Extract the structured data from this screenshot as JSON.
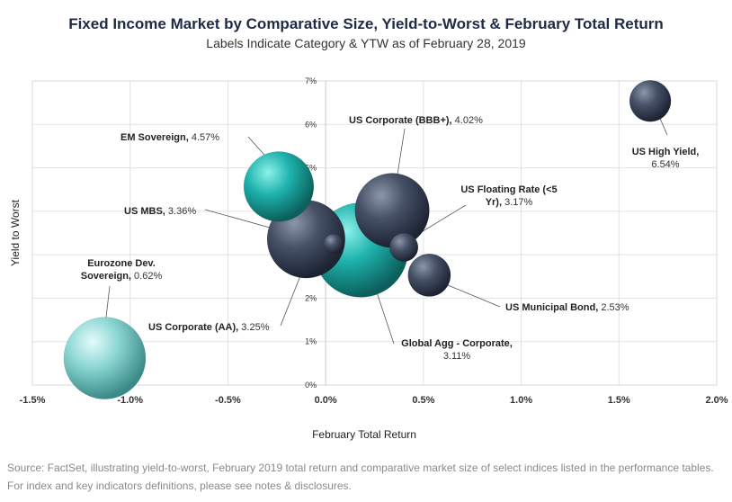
{
  "chart_data": {
    "type": "scatter",
    "title": "Fixed Income Market by Comparative Size, Yield-to-Worst & February Total Return",
    "subtitle": "Labels Indicate Category & YTW as of February 28, 2019",
    "xlabel": "February Total Return",
    "ylabel": "Yield to Worst",
    "xlim": [
      -1.5,
      2.0
    ],
    "ylim": [
      0,
      7
    ],
    "x_ticks": [
      "-1.5%",
      "-1.0%",
      "-0.5%",
      "0.0%",
      "0.5%",
      "1.0%",
      "1.5%",
      "2.0%"
    ],
    "y_ticks": [
      "0%",
      "1%",
      "2%",
      "3%",
      "4%",
      "5%",
      "6%",
      "7%"
    ],
    "grid": true,
    "points": [
      {
        "name": "US High Yield,",
        "value_label": "6.54%",
        "x": 1.66,
        "y": 6.54,
        "size": 1.2,
        "color": "#3f4a5c"
      },
      {
        "name": "US Corporate (BBB+),",
        "value_label": "4.02%",
        "x": 0.34,
        "y": 4.02,
        "size": 5.2,
        "color": "#3f4a5c"
      },
      {
        "name": "EM Sovereign,",
        "value_label": "4.57%",
        "x": -0.24,
        "y": 4.57,
        "size": 4.5,
        "color": "#1fb3ad"
      },
      {
        "name": "US Floating Rate (<5 Yr),",
        "value_label": "3.17%",
        "x": 0.4,
        "y": 3.17,
        "size": 0.4,
        "color": "#3f4a5c"
      },
      {
        "name": "US MBS,",
        "value_label": "3.36%",
        "x": -0.1,
        "y": 3.36,
        "size": 5.8,
        "color": "#3f4a5c"
      },
      {
        "name": "US Municipal Bond,",
        "value_label": "2.53%",
        "x": 0.53,
        "y": 2.53,
        "size": 1.3,
        "color": "#3f4a5c"
      },
      {
        "name": "Global Agg - Corporate,",
        "value_label": "3.11%",
        "x": 0.18,
        "y": 3.11,
        "size": 9.0,
        "color": "#1fb3ad"
      },
      {
        "name": "US Corporate (AA),",
        "value_label": "3.25%",
        "x": 0.04,
        "y": 3.25,
        "size": 0.1,
        "color": "#3f4a5c"
      },
      {
        "name": "Eurozone Dev. Sovereign,",
        "value_label": "0.62%",
        "x": -1.13,
        "y": 0.62,
        "size": 6.5,
        "color": "#7fd3d0"
      }
    ]
  },
  "footer": {
    "source": "Source: FactSet, illustrating yield-to-worst, February 2019 total return and comparative market size of select indices listed in the performance tables. For index and key indicators definitions, please see notes & disclosures."
  }
}
